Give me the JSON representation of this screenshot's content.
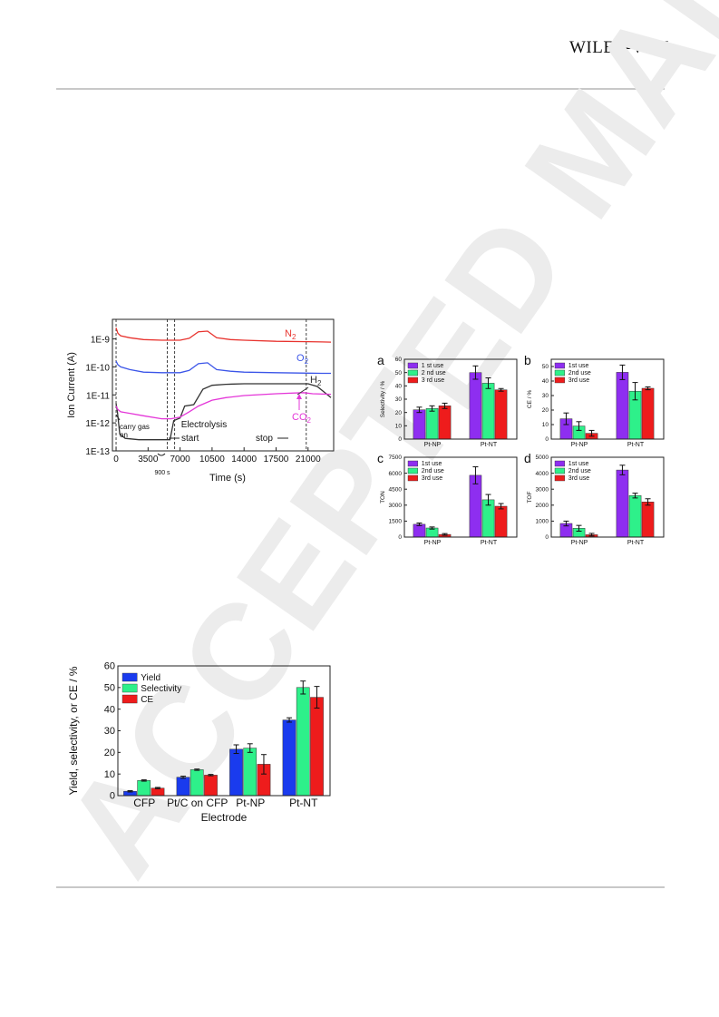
{
  "header": {
    "publisher_logo": "WILEY-VCH"
  },
  "watermark": {
    "text": "ACCEPTED MANUSCRIPT",
    "color": "#ececec"
  },
  "fig_ms": {
    "chart_data": {
      "type": "line",
      "ylabel": "Ion Current (A)",
      "xlabel": "Time (s)",
      "x_ticks": [
        "0",
        "3500",
        "7000",
        "10500",
        "14000",
        "17500",
        "21000"
      ],
      "y_ticks": [
        "1E-9",
        "1E-10",
        "1E-11",
        "1E-12",
        "1E-13"
      ],
      "yscale": "log",
      "ylim": [
        1e-13,
        5e-09
      ],
      "xlim": [
        -400,
        23800
      ],
      "series": [
        {
          "name": "N2",
          "label_main": "N",
          "label_sub": "2",
          "color": "#e8332e",
          "x": [
            0,
            200,
            500,
            1500,
            3000,
            5000,
            7000,
            8000,
            9000,
            10000,
            11000,
            12500,
            14000,
            17500,
            21000,
            22500,
            23500
          ],
          "y": [
            2.5e-09,
            1.6e-09,
            1.3e-09,
            1.1e-09,
            9.5e-10,
            9e-10,
            9e-10,
            1.05e-09,
            1.8e-09,
            1.9e-09,
            1.1e-09,
            9.5e-10,
            9e-10,
            8.2e-10,
            8e-10,
            7.8e-10,
            7.7e-10
          ]
        },
        {
          "name": "O2",
          "label_main": "O",
          "label_sub": "2",
          "color": "#3b55e8",
          "x": [
            0,
            200,
            500,
            1500,
            3000,
            5000,
            7000,
            8000,
            9000,
            10000,
            11000,
            12500,
            14000,
            17500,
            21000,
            22500,
            23500
          ],
          "y": [
            1.6e-10,
            1.2e-10,
            1e-10,
            8e-11,
            6.5e-11,
            6.2e-11,
            6.2e-11,
            7.5e-11,
            1.3e-10,
            1.4e-10,
            8e-11,
            7e-11,
            6.5e-11,
            6.2e-11,
            6e-11,
            5.9e-11,
            5.9e-11
          ]
        },
        {
          "name": "H2",
          "label_main": "H",
          "label_sub": "2",
          "color": "#333333",
          "x": [
            0,
            150,
            400,
            1000,
            2500,
            5000,
            5900,
            6300,
            7000,
            7500,
            8500,
            9500,
            10500,
            12000,
            14000,
            17500,
            21000,
            22000,
            23500
          ],
          "y": [
            5e-12,
            2.5e-12,
            4e-13,
            2.8e-13,
            2.5e-13,
            2.5e-13,
            2.5e-13,
            1.2e-12,
            1.5e-12,
            4e-12,
            4.5e-12,
            1.6e-11,
            2.2e-11,
            2.4e-11,
            2.5e-11,
            2.5e-11,
            2.5e-11,
            2e-11,
            8e-12
          ]
        },
        {
          "name": "CO2",
          "label_main": "CO",
          "label_sub": "2",
          "color": "#e436d8",
          "x": [
            0,
            200,
            500,
            1500,
            3000,
            5000,
            6000,
            7000,
            8000,
            9000,
            10500,
            12000,
            14000,
            17500,
            20500,
            21500,
            23500
          ],
          "y": [
            4e-12,
            3e-12,
            2.5e-12,
            2.2e-12,
            1.8e-12,
            1.4e-12,
            1.4e-12,
            1.6e-12,
            2.5e-12,
            4e-12,
            6.5e-12,
            8e-12,
            9.5e-12,
            1.1e-11,
            1.2e-11,
            1.1e-11,
            1.05e-11
          ]
        }
      ],
      "markers": [
        {
          "x": 0
        },
        {
          "x": 5600
        },
        {
          "x": 6400
        },
        {
          "x": 20800
        }
      ],
      "annotations": {
        "carry_gas_line1": "carry gas",
        "carry_gas_line2": "on",
        "gap": "900 s",
        "electrolysis": "Electrolysis",
        "start": "start",
        "stop": "stop"
      }
    }
  },
  "fig_reuse": {
    "chart_data": [
      {
        "panel": "a",
        "type": "bar",
        "ylabel": "Selectivity / %",
        "categories": [
          "Pt-NP",
          "Pt-NT"
        ],
        "ylim": [
          0,
          60
        ],
        "yticks": [
          "0",
          "10",
          "20",
          "30",
          "40",
          "50",
          "60"
        ],
        "series": [
          {
            "name": "1 st use",
            "color": "#8e2ef0",
            "values": [
              22,
              50
            ],
            "errors": [
              2,
              5
            ]
          },
          {
            "name": "2 nd use",
            "color": "#2ef08a",
            "values": [
              23,
              42
            ],
            "errors": [
              2,
              4
            ]
          },
          {
            "name": "3 rd use",
            "color": "#ee1c1c",
            "values": [
              25,
              37
            ],
            "errors": [
              2,
              1
            ]
          }
        ]
      },
      {
        "panel": "b",
        "type": "bar",
        "ylabel": "CE / %",
        "categories": [
          "Pt-NP",
          "Pt-NT"
        ],
        "ylim": [
          0,
          55
        ],
        "yticks": [
          "0",
          "10",
          "20",
          "30",
          "40",
          "50"
        ],
        "series": [
          {
            "name": "1st use",
            "color": "#8e2ef0",
            "values": [
              14,
              46
            ],
            "errors": [
              4,
              5
            ]
          },
          {
            "name": "2nd use",
            "color": "#2ef08a",
            "values": [
              9,
              33
            ],
            "errors": [
              3,
              6
            ]
          },
          {
            "name": "3rd use",
            "color": "#ee1c1c",
            "values": [
              4,
              35
            ],
            "errors": [
              2,
              1
            ]
          }
        ]
      },
      {
        "panel": "c",
        "type": "bar",
        "ylabel": "TON",
        "categories": [
          "Pt-NP",
          "Pt-NT"
        ],
        "ylim": [
          0,
          7500
        ],
        "yticks": [
          "0",
          "1500",
          "3000",
          "4500",
          "6000",
          "7500"
        ],
        "series": [
          {
            "name": "1st use",
            "color": "#8e2ef0",
            "values": [
              1200,
              5800
            ],
            "errors": [
              120,
              800
            ]
          },
          {
            "name": "2nd use",
            "color": "#2ef08a",
            "values": [
              850,
              3500
            ],
            "errors": [
              100,
              500
            ]
          },
          {
            "name": "3rd use",
            "color": "#ee1c1c",
            "values": [
              250,
              2900
            ],
            "errors": [
              80,
              250
            ]
          }
        ]
      },
      {
        "panel": "d",
        "type": "bar",
        "ylabel": "TOF",
        "categories": [
          "Pt-NP",
          "Pt-NT"
        ],
        "ylim": [
          0,
          5000
        ],
        "yticks": [
          "0",
          "1000",
          "2000",
          "3000",
          "4000",
          "5000"
        ],
        "series": [
          {
            "name": "1st use",
            "color": "#8e2ef0",
            "values": [
              850,
              4200
            ],
            "errors": [
              150,
              300
            ]
          },
          {
            "name": "2nd use",
            "color": "#2ef08a",
            "values": [
              550,
              2600
            ],
            "errors": [
              180,
              150
            ]
          },
          {
            "name": "3rd use",
            "color": "#ee1c1c",
            "values": [
              150,
              2200
            ],
            "errors": [
              80,
              200
            ]
          }
        ]
      }
    ]
  },
  "fig_electrode": {
    "chart_data": {
      "type": "bar",
      "ylabel": "Yield, selectivity, or CE / %",
      "xlabel": "Electrode",
      "categories": [
        "CFP",
        "Pt/C on CFP",
        "Pt-NP",
        "Pt-NT"
      ],
      "ylim": [
        0,
        60
      ],
      "yticks": [
        "0",
        "10",
        "20",
        "30",
        "40",
        "50",
        "60"
      ],
      "series": [
        {
          "name": "Yield",
          "color": "#1a3bee",
          "values": [
            2,
            8.5,
            21.5,
            35
          ],
          "errors": [
            0.3,
            0.5,
            2,
            1
          ]
        },
        {
          "name": "Selectivity",
          "color": "#2ef08a",
          "values": [
            7,
            12,
            22,
            50
          ],
          "errors": [
            0.3,
            0.3,
            2,
            3
          ]
        },
        {
          "name": "CE",
          "color": "#ee1c1c",
          "values": [
            3.5,
            9.5,
            14.5,
            45.5
          ],
          "errors": [
            0.3,
            0.3,
            4.5,
            5
          ]
        }
      ]
    }
  }
}
